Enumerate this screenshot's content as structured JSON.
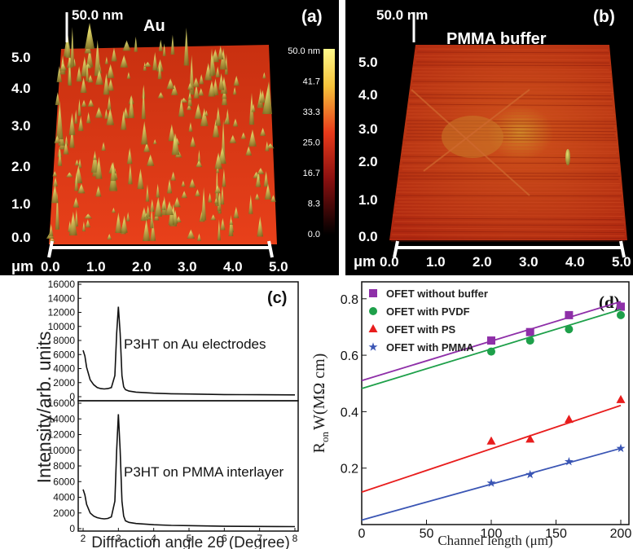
{
  "chart_data": [
    {
      "panel": "(a)",
      "type": "surface",
      "title": "Au",
      "z_scale_label": "50.0 nm",
      "y_unit": "μm",
      "y_ticks": [
        "0.0",
        "1.0",
        "2.0",
        "3.0",
        "4.0",
        "5.0"
      ],
      "x_ticks": [
        "0.0",
        "1.0",
        "2.0",
        "3.0",
        "4.0",
        "5.0"
      ],
      "colorbar_ticks": [
        "50.0 nm",
        "41.7",
        "33.3",
        "25.0",
        "16.7",
        "8.3",
        "0.0"
      ]
    },
    {
      "panel": "(b)",
      "type": "surface",
      "title": "PMMA buffer",
      "z_scale_label": "50.0 nm",
      "y_unit": "μm",
      "y_ticks": [
        "0.0",
        "1.0",
        "2.0",
        "3.0",
        "4.0",
        "5.0"
      ],
      "x_ticks": [
        "0.0",
        "1.0",
        "2.0",
        "3.0",
        "4.0",
        "5.0"
      ]
    },
    {
      "panel": "(c)",
      "type": "line",
      "ylabel": "Intensity/arb. units",
      "xlabel": "Diffraction angle 2θ (Degree)",
      "xlim": [
        2,
        8
      ],
      "ylim": [
        0,
        16000
      ],
      "x_ticks": [
        "2",
        "3",
        "4",
        "5",
        "6",
        "7",
        "8"
      ],
      "y_ticks": [
        "0",
        "2000",
        "4000",
        "6000",
        "8000",
        "10000",
        "12000",
        "14000",
        "16000"
      ],
      "subplots": [
        {
          "annotation": "P3HT on Au electrodes",
          "x": [
            2.0,
            2.05,
            2.1,
            2.2,
            2.3,
            2.4,
            2.5,
            2.6,
            2.7,
            2.8,
            2.9,
            2.95,
            3.0,
            3.05,
            3.1,
            3.15,
            3.2,
            3.3,
            3.5,
            4.0,
            4.5,
            5.0,
            5.5,
            6.0,
            6.5,
            7.0,
            7.5,
            8.0
          ],
          "y": [
            6600,
            5800,
            4200,
            2400,
            1700,
            1300,
            1150,
            1100,
            1150,
            1300,
            3000,
            9000,
            12800,
            9000,
            3000,
            1400,
            1000,
            800,
            650,
            500,
            420,
            380,
            340,
            300,
            290,
            280,
            270,
            260
          ]
        },
        {
          "annotation": "P3HT on PMMA interlayer",
          "x": [
            2.0,
            2.05,
            2.1,
            2.2,
            2.3,
            2.4,
            2.5,
            2.6,
            2.7,
            2.8,
            2.9,
            2.95,
            3.0,
            3.05,
            3.1,
            3.15,
            3.2,
            3.3,
            3.5,
            4.0,
            4.5,
            5.0,
            5.5,
            6.0,
            6.5,
            7.0,
            7.5,
            8.0
          ],
          "y": [
            5000,
            4300,
            3100,
            2000,
            1600,
            1400,
            1300,
            1250,
            1300,
            1500,
            3500,
            10000,
            14600,
            10000,
            3500,
            1600,
            1000,
            800,
            650,
            500,
            420,
            380,
            340,
            300,
            290,
            280,
            270,
            260
          ]
        }
      ]
    },
    {
      "panel": "(d)",
      "type": "scatter",
      "xlabel": "Channel length (μm)",
      "ylabel_main": "R",
      "ylabel_sub": "on",
      "ylabel_rest": "W(MΩ cm)",
      "xlim": [
        0,
        200
      ],
      "ylim": [
        0,
        0.86
      ],
      "x_ticks": [
        0,
        50,
        100,
        150,
        200
      ],
      "y_ticks": [
        0.2,
        0.4,
        0.6,
        0.8
      ],
      "series": [
        {
          "name": "OFET without buffer",
          "color": "#8e2fa8",
          "marker": "square",
          "x": [
            100,
            130,
            160,
            200
          ],
          "y": [
            0.652,
            0.682,
            0.742,
            0.772
          ],
          "fit": {
            "x": [
              0,
              200
            ],
            "y": [
              0.51,
              0.79
            ]
          }
        },
        {
          "name": "OFET with PVDF",
          "color": "#1ea04a",
          "marker": "circle",
          "x": [
            100,
            130,
            160,
            200
          ],
          "y": [
            0.613,
            0.652,
            0.692,
            0.742
          ],
          "fit": {
            "x": [
              0,
              200
            ],
            "y": [
              0.482,
              0.762
            ]
          }
        },
        {
          "name": "OFET with PS",
          "color": "#e81d1d",
          "marker": "triangle",
          "x": [
            100,
            130,
            160,
            200
          ],
          "y": [
            0.295,
            0.302,
            0.372,
            0.442
          ],
          "fit": {
            "x": [
              0,
              200
            ],
            "y": [
              0.115,
              0.422
            ]
          }
        },
        {
          "name": "OFET with PMMA",
          "color": "#3a55b4",
          "marker": "star",
          "x": [
            100,
            130,
            160,
            200
          ],
          "y": [
            0.147,
            0.177,
            0.223,
            0.27
          ],
          "fit": {
            "x": [
              0,
              200
            ],
            "y": [
              0.016,
              0.27
            ]
          }
        }
      ]
    }
  ],
  "panel_labels": {
    "a": "(a)",
    "b": "(b)",
    "c": "(c)",
    "d": "(d)"
  }
}
